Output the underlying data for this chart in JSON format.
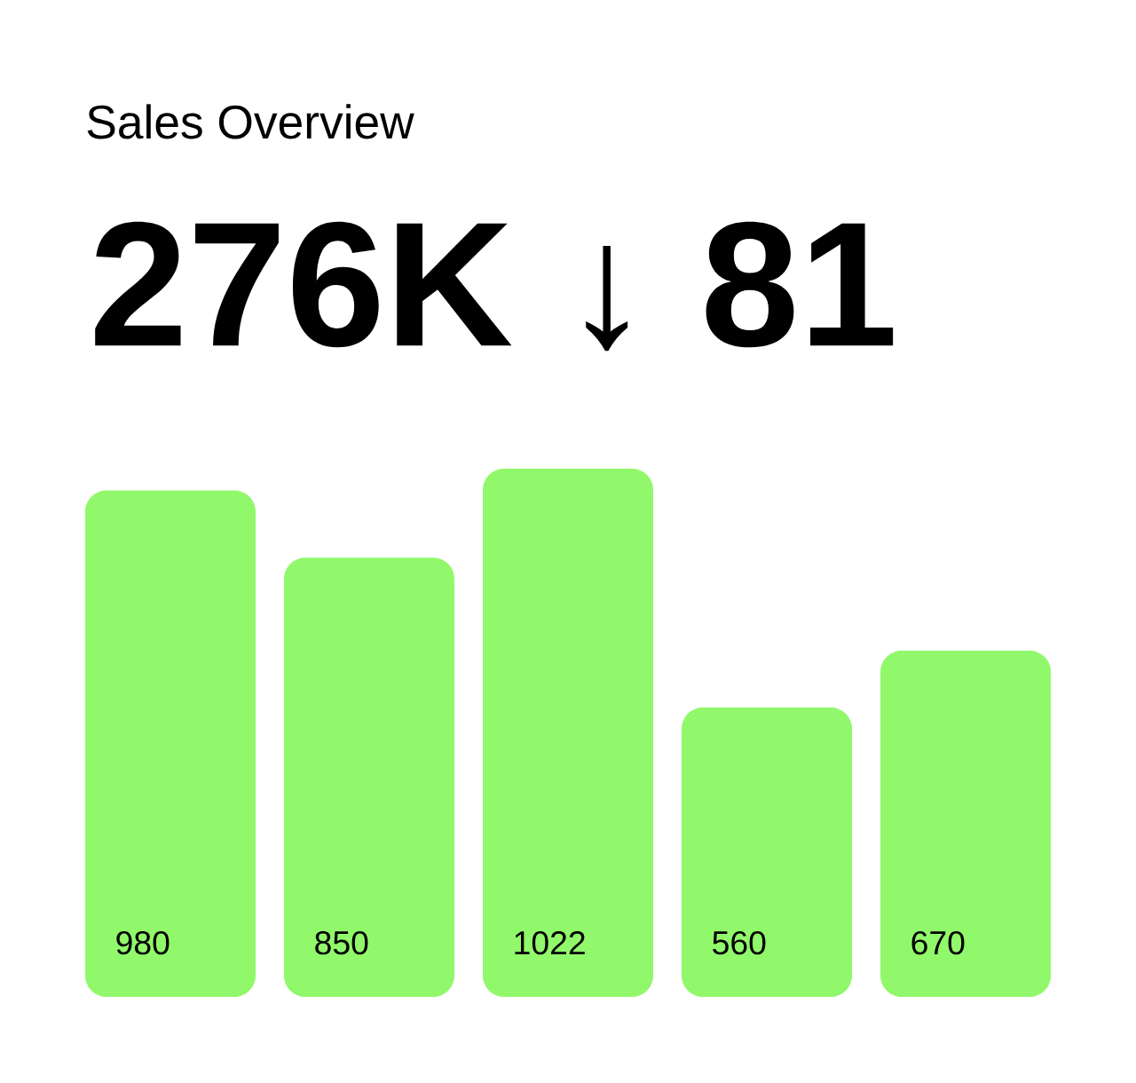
{
  "chart_data": {
    "type": "bar",
    "title": "Sales Overview",
    "subtitle": "276K ↓ 81",
    "categories": [
      null,
      null,
      null,
      null,
      null
    ],
    "values": [
      980,
      850,
      1022,
      560,
      670
    ],
    "color": "#91f86b",
    "data_labels": true
  }
}
